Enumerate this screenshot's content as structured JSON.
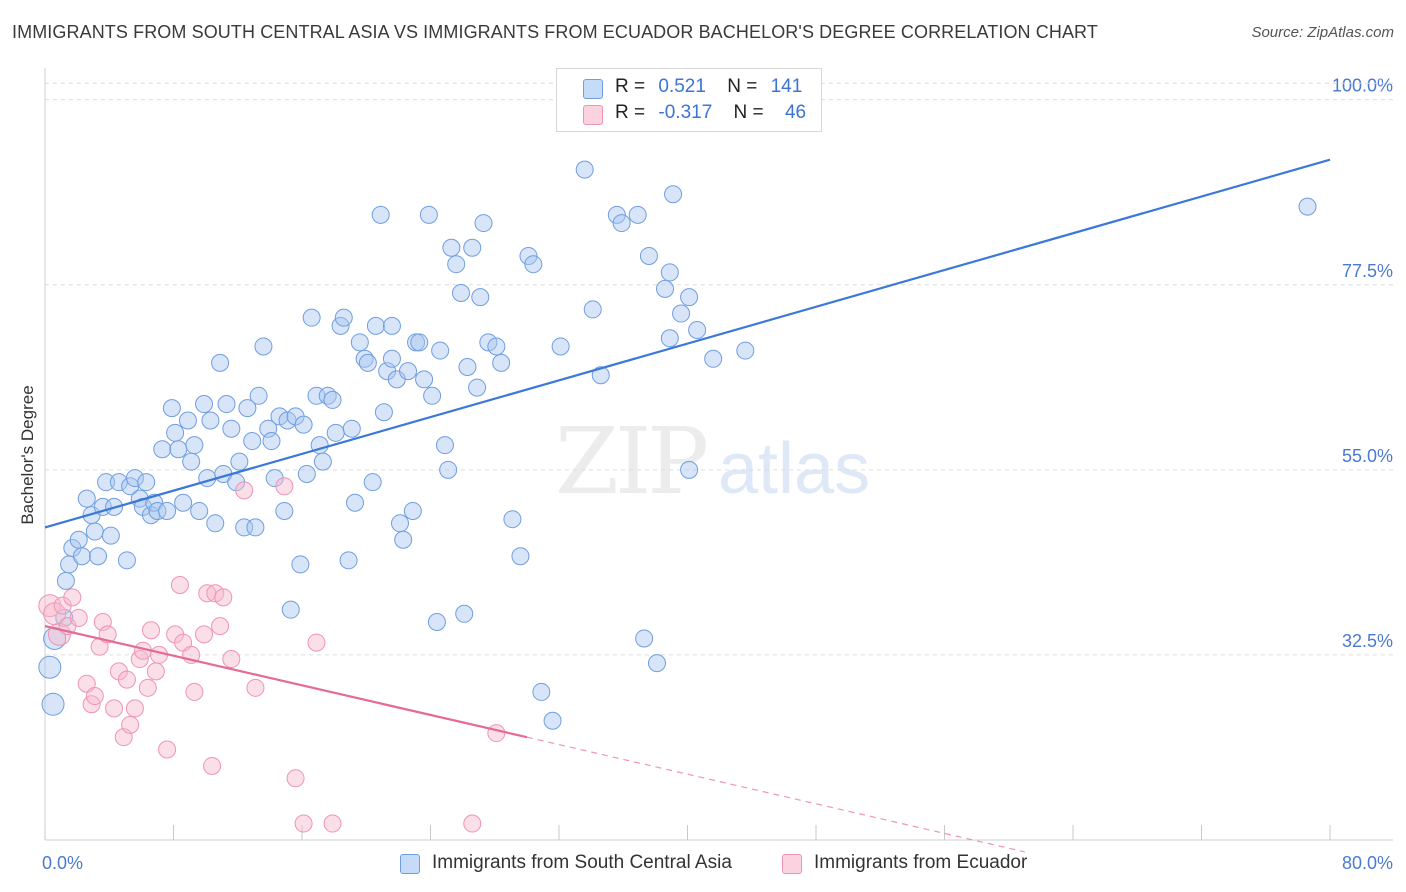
{
  "header": {
    "title": "IMMIGRANTS FROM SOUTH CENTRAL ASIA VS IMMIGRANTS FROM ECUADOR BACHELOR'S DEGREE CORRELATION CHART",
    "source": "Source: ZipAtlas.com"
  },
  "watermark": {
    "zip": "ZIP",
    "atlas": "atlas"
  },
  "legend": {
    "rows": [
      {
        "r_label": "R =",
        "r_value": "0.521",
        "n_label": "N =",
        "n_value": "141",
        "color": "#a9c6f0"
      },
      {
        "r_label": "R =",
        "r_value": "-0.317",
        "n_label": "N =",
        "n_value": "46",
        "color": "#f6b8cc"
      }
    ]
  },
  "bottom_legend": [
    {
      "label": "Immigrants from South Central Asia",
      "color": "#a9c6f0"
    },
    {
      "label": "Immigrants from Ecuador",
      "color": "#f6b8cc"
    }
  ],
  "chart_data": {
    "type": "scatter",
    "title": "IMMIGRANTS FROM SOUTH CENTRAL ASIA VS IMMIGRANTS FROM ECUADOR BACHELOR'S DEGREE CORRELATION CHART",
    "xlabel": "",
    "ylabel": "Bachelor's Degree",
    "xlim": [
      0,
      80
    ],
    "ylim": [
      10,
      103
    ],
    "x_tick_labels": [
      "0.0%",
      "80.0%"
    ],
    "y_ticks": [
      32.5,
      55.0,
      77.5,
      100.0
    ],
    "y_tick_labels": [
      "32.5%",
      "55.0%",
      "77.5%",
      "100.0%"
    ],
    "grid": true,
    "series": [
      {
        "name": "Immigrants from South Central Asia",
        "color": "#a9c6f0",
        "stroke": "#6f9ee0",
        "trend": {
          "x": [
            0,
            80
          ],
          "y": [
            48.0,
            92.7
          ],
          "color": "#3b78d8"
        },
        "points": [
          [
            0.5,
            26.5
          ],
          [
            0.3,
            31.0
          ],
          [
            0.6,
            34.5
          ],
          [
            1.2,
            37.0
          ],
          [
            1.3,
            41.5
          ],
          [
            1.5,
            43.5
          ],
          [
            1.7,
            45.5
          ],
          [
            2.1,
            46.5
          ],
          [
            2.3,
            44.5
          ],
          [
            2.6,
            51.5
          ],
          [
            2.9,
            49.5
          ],
          [
            3.1,
            47.5
          ],
          [
            3.3,
            44.5
          ],
          [
            3.6,
            50.5
          ],
          [
            3.8,
            53.5
          ],
          [
            4.1,
            47.0
          ],
          [
            4.3,
            50.5
          ],
          [
            4.6,
            53.5
          ],
          [
            5.1,
            44.0
          ],
          [
            5.3,
            53.0
          ],
          [
            5.6,
            54.0
          ],
          [
            5.9,
            51.5
          ],
          [
            6.1,
            50.5
          ],
          [
            6.3,
            53.5
          ],
          [
            6.6,
            49.5
          ],
          [
            6.8,
            51.0
          ],
          [
            7.0,
            50.0
          ],
          [
            7.3,
            57.5
          ],
          [
            7.6,
            50.0
          ],
          [
            7.9,
            62.5
          ],
          [
            8.1,
            59.5
          ],
          [
            8.3,
            57.5
          ],
          [
            8.6,
            51.0
          ],
          [
            8.9,
            61.0
          ],
          [
            9.1,
            56.0
          ],
          [
            9.3,
            58.0
          ],
          [
            9.6,
            50.0
          ],
          [
            9.9,
            63.0
          ],
          [
            10.1,
            54.0
          ],
          [
            10.3,
            61.0
          ],
          [
            10.6,
            48.5
          ],
          [
            10.9,
            68.0
          ],
          [
            11.1,
            54.5
          ],
          [
            11.3,
            63.0
          ],
          [
            11.6,
            60.0
          ],
          [
            11.9,
            53.5
          ],
          [
            12.1,
            56.0
          ],
          [
            12.4,
            48.0
          ],
          [
            12.6,
            62.5
          ],
          [
            12.9,
            58.5
          ],
          [
            13.1,
            48.0
          ],
          [
            13.3,
            64.0
          ],
          [
            13.6,
            70.0
          ],
          [
            13.9,
            60.0
          ],
          [
            14.1,
            58.5
          ],
          [
            14.3,
            54.0
          ],
          [
            14.6,
            61.5
          ],
          [
            14.9,
            50.0
          ],
          [
            15.1,
            61.0
          ],
          [
            15.3,
            38.0
          ],
          [
            15.6,
            61.5
          ],
          [
            15.9,
            43.5
          ],
          [
            16.1,
            60.5
          ],
          [
            16.3,
            54.5
          ],
          [
            16.6,
            73.5
          ],
          [
            16.9,
            64.0
          ],
          [
            17.1,
            58.0
          ],
          [
            17.3,
            56.0
          ],
          [
            17.6,
            64.0
          ],
          [
            17.9,
            63.5
          ],
          [
            18.1,
            59.5
          ],
          [
            18.4,
            72.5
          ],
          [
            18.6,
            73.5
          ],
          [
            18.9,
            44.0
          ],
          [
            19.1,
            60.0
          ],
          [
            19.3,
            51.0
          ],
          [
            19.6,
            70.5
          ],
          [
            19.9,
            68.5
          ],
          [
            20.1,
            68.0
          ],
          [
            20.4,
            53.5
          ],
          [
            20.6,
            72.5
          ],
          [
            20.9,
            86.0
          ],
          [
            21.1,
            62.0
          ],
          [
            21.3,
            67.0
          ],
          [
            21.6,
            72.5
          ],
          [
            21.9,
            66.0
          ],
          [
            22.1,
            48.5
          ],
          [
            22.3,
            46.5
          ],
          [
            22.6,
            67.0
          ],
          [
            22.9,
            50.0
          ],
          [
            23.1,
            70.5
          ],
          [
            23.3,
            70.5
          ],
          [
            23.6,
            66.0
          ],
          [
            23.9,
            86.0
          ],
          [
            24.1,
            64.0
          ],
          [
            24.4,
            36.5
          ],
          [
            24.6,
            69.5
          ],
          [
            24.9,
            58.0
          ],
          [
            25.1,
            55.0
          ],
          [
            25.3,
            82.0
          ],
          [
            25.6,
            80.0
          ],
          [
            25.9,
            76.5
          ],
          [
            26.1,
            37.5
          ],
          [
            26.3,
            67.5
          ],
          [
            26.6,
            82.0
          ],
          [
            26.9,
            65.0
          ],
          [
            27.1,
            76.0
          ],
          [
            27.3,
            85.0
          ],
          [
            27.6,
            70.5
          ],
          [
            28.1,
            70.0
          ],
          [
            28.4,
            68.0
          ],
          [
            29.1,
            49.0
          ],
          [
            29.6,
            44.5
          ],
          [
            30.1,
            81.0
          ],
          [
            30.4,
            80.0
          ],
          [
            30.9,
            28.0
          ],
          [
            31.6,
            24.5
          ],
          [
            32.1,
            70.0
          ],
          [
            33.6,
            91.5
          ],
          [
            34.1,
            74.5
          ],
          [
            34.6,
            66.5
          ],
          [
            35.6,
            86.0
          ],
          [
            35.9,
            85.0
          ],
          [
            36.9,
            86.0
          ],
          [
            37.6,
            81.0
          ],
          [
            37.3,
            34.5
          ],
          [
            38.1,
            31.5
          ],
          [
            38.6,
            77.0
          ],
          [
            38.9,
            79.0
          ],
          [
            38.9,
            71.0
          ],
          [
            39.6,
            74.0
          ],
          [
            40.1,
            55.0
          ],
          [
            40.6,
            72.0
          ],
          [
            41.6,
            68.5
          ],
          [
            43.6,
            69.5
          ],
          [
            40.1,
            76.0
          ],
          [
            39.1,
            88.5
          ],
          [
            78.6,
            87.0
          ],
          [
            21.6,
            68.5
          ]
        ]
      },
      {
        "name": "Immigrants from Ecuador",
        "color": "#f6b8cc",
        "stroke": "#ef94b1",
        "trend": {
          "x": [
            0,
            30
          ],
          "y": [
            36.0,
            22.5
          ],
          "color": "#e56a95",
          "dashed_extension_to_x": 61
        },
        "points": [
          [
            0.3,
            38.5
          ],
          [
            0.6,
            37.5
          ],
          [
            0.9,
            35.0
          ],
          [
            1.1,
            38.5
          ],
          [
            1.4,
            36.0
          ],
          [
            1.7,
            39.5
          ],
          [
            2.1,
            37.0
          ],
          [
            2.6,
            29.0
          ],
          [
            2.9,
            26.5
          ],
          [
            3.1,
            27.5
          ],
          [
            3.4,
            33.5
          ],
          [
            3.6,
            36.5
          ],
          [
            3.9,
            35.0
          ],
          [
            4.3,
            26.0
          ],
          [
            4.6,
            30.5
          ],
          [
            4.9,
            22.5
          ],
          [
            5.1,
            29.5
          ],
          [
            5.3,
            24.0
          ],
          [
            5.6,
            26.0
          ],
          [
            5.9,
            32.0
          ],
          [
            6.1,
            33.0
          ],
          [
            6.4,
            28.5
          ],
          [
            6.6,
            35.5
          ],
          [
            6.9,
            30.5
          ],
          [
            7.1,
            32.5
          ],
          [
            7.6,
            21.0
          ],
          [
            8.1,
            35.0
          ],
          [
            8.4,
            41.0
          ],
          [
            8.6,
            34.0
          ],
          [
            9.1,
            32.5
          ],
          [
            9.3,
            28.0
          ],
          [
            9.9,
            35.0
          ],
          [
            10.1,
            40.0
          ],
          [
            10.4,
            19.0
          ],
          [
            10.6,
            40.0
          ],
          [
            10.9,
            36.0
          ],
          [
            11.1,
            39.5
          ],
          [
            11.6,
            32.0
          ],
          [
            12.4,
            52.5
          ],
          [
            13.1,
            28.5
          ],
          [
            14.9,
            53.0
          ],
          [
            15.6,
            17.5
          ],
          [
            16.1,
            12.0
          ],
          [
            16.9,
            34.0
          ],
          [
            17.9,
            12.0
          ],
          [
            26.6,
            12.0
          ],
          [
            28.1,
            23.0
          ]
        ]
      }
    ]
  }
}
